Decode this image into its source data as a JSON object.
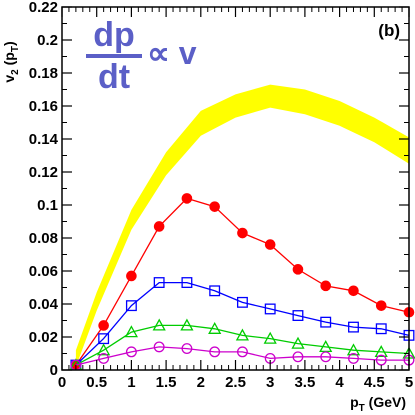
{
  "chart_data": {
    "type": "line",
    "title": "",
    "xlabel": "p",
    "xlabel_sub": "T",
    "xlabel_unit": " (GeV)",
    "ylabel": "v",
    "ylabel_sub1": "2",
    "ylabel_mid": " (p",
    "ylabel_sub2": "T",
    "ylabel_end": ")",
    "panel_label": "(b)",
    "annotation": {
      "numerator": "dp",
      "denominator": "dt",
      "relation": "∝ v",
      "color": "#5b5fc7"
    },
    "xlim": [
      0,
      5
    ],
    "ylim": [
      0,
      0.22
    ],
    "xticks": [
      0,
      0.5,
      1,
      1.5,
      2,
      2.5,
      3,
      3.5,
      4,
      4.5,
      5
    ],
    "xtick_labels": [
      "0",
      "0.5",
      "1",
      "1.5",
      "2",
      "2.5",
      "3",
      "3.5",
      "4",
      "4.5",
      "5"
    ],
    "yticks": [
      0,
      0.02,
      0.04,
      0.06,
      0.08,
      0.1,
      0.12,
      0.14,
      0.16,
      0.18,
      0.2,
      0.22
    ],
    "ytick_labels": [
      "0",
      "0.02",
      "0.04",
      "0.06",
      "0.08",
      "0.1",
      "0.12",
      "0.14",
      "0.16",
      "0.18",
      "0.2",
      "0.22"
    ],
    "grid": false,
    "band": {
      "color": "#ffff00",
      "x": [
        0.2,
        0.5,
        1.0,
        1.5,
        2.0,
        2.5,
        3.0,
        3.5,
        4.0,
        4.5,
        5.0
      ],
      "lower": [
        0.002,
        0.036,
        0.085,
        0.118,
        0.142,
        0.153,
        0.159,
        0.155,
        0.148,
        0.138,
        0.125
      ],
      "upper": [
        0.012,
        0.047,
        0.097,
        0.132,
        0.157,
        0.167,
        0.173,
        0.17,
        0.163,
        0.153,
        0.141
      ]
    },
    "series": [
      {
        "marker": "filled-circle",
        "color": "#ff0000",
        "x": [
          0.2,
          0.6,
          1.0,
          1.4,
          1.8,
          2.2,
          2.6,
          3.0,
          3.4,
          3.8,
          4.2,
          4.6,
          5.0
        ],
        "values": [
          0.003,
          0.027,
          0.057,
          0.087,
          0.104,
          0.099,
          0.083,
          0.076,
          0.061,
          0.051,
          0.048,
          0.039,
          0.035
        ]
      },
      {
        "marker": "open-square",
        "color": "#0000ff",
        "x": [
          0.2,
          0.6,
          1.0,
          1.4,
          1.8,
          2.2,
          2.6,
          3.0,
          3.4,
          3.8,
          4.2,
          4.6,
          5.0
        ],
        "values": [
          0.003,
          0.019,
          0.039,
          0.053,
          0.053,
          0.048,
          0.041,
          0.037,
          0.033,
          0.029,
          0.026,
          0.025,
          0.021
        ]
      },
      {
        "marker": "open-triangle",
        "color": "#00cc00",
        "x": [
          0.2,
          0.6,
          1.0,
          1.4,
          1.8,
          2.2,
          2.6,
          3.0,
          3.4,
          3.8,
          4.2,
          4.6,
          5.0
        ],
        "values": [
          0.003,
          0.012,
          0.023,
          0.027,
          0.027,
          0.025,
          0.021,
          0.019,
          0.016,
          0.014,
          0.012,
          0.011,
          0.01
        ]
      },
      {
        "marker": "open-circle",
        "color": "#cc00cc",
        "x": [
          0.2,
          0.6,
          1.0,
          1.4,
          1.8,
          2.2,
          2.6,
          3.0,
          3.4,
          3.8,
          4.2,
          4.6,
          5.0
        ],
        "values": [
          0.003,
          0.007,
          0.011,
          0.014,
          0.013,
          0.011,
          0.011,
          0.007,
          0.008,
          0.008,
          0.007,
          0.006,
          0.006
        ]
      }
    ]
  }
}
